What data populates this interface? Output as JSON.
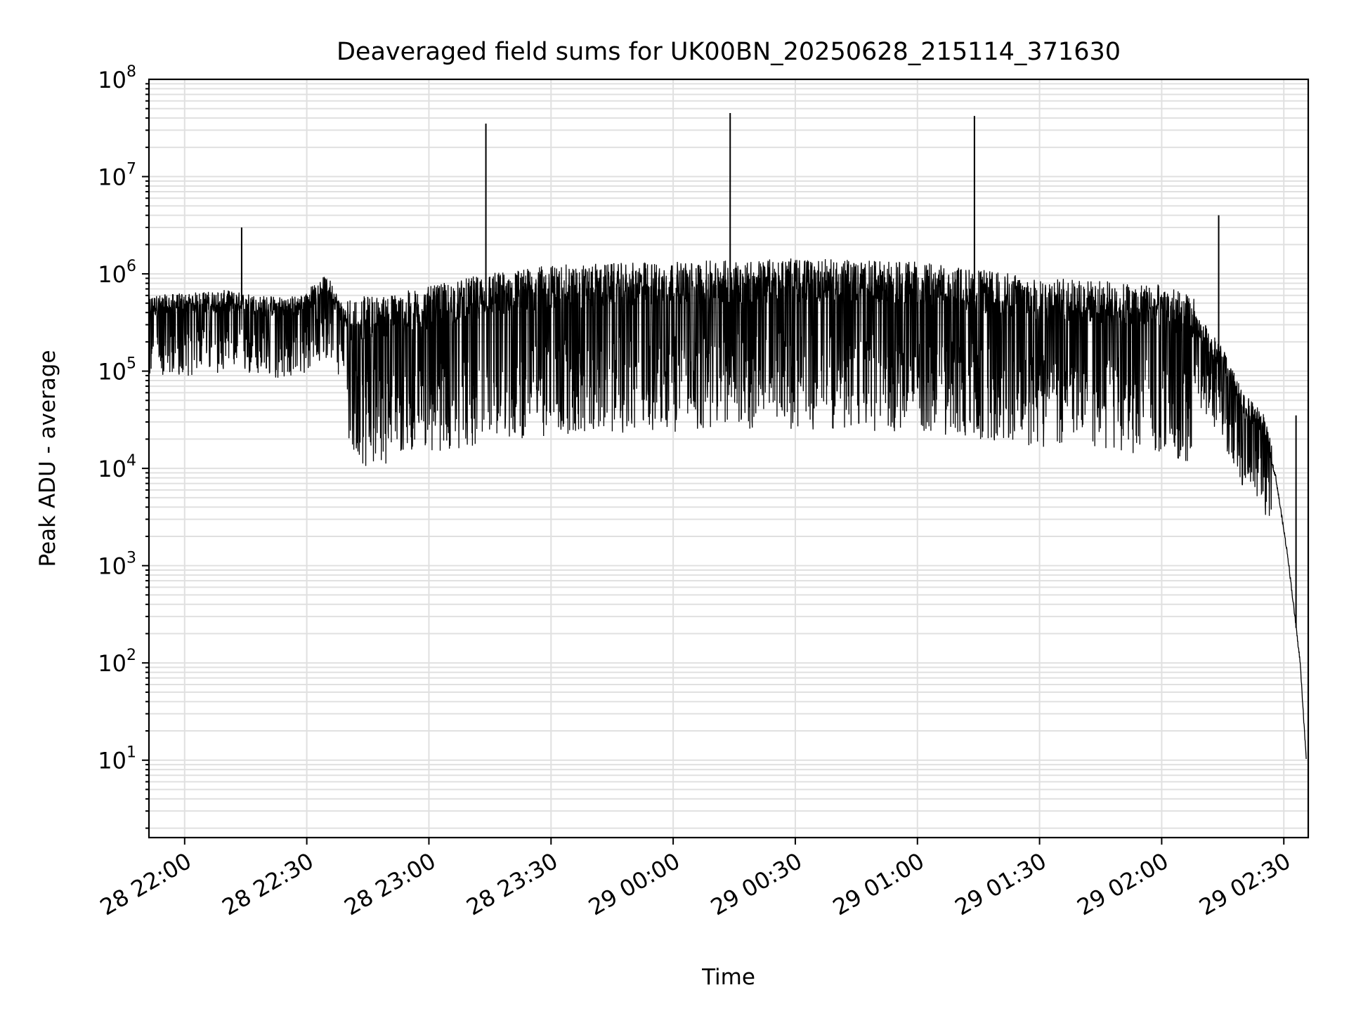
{
  "chart_data": {
    "type": "line",
    "title": "Deaveraged field sums for UK00BN_20250628_215114_371630",
    "xlabel": "Time",
    "ylabel": "Peak ADU - average",
    "yscale": "log",
    "ylim": [
      1.6,
      100000000
    ],
    "xlim": [
      "2025-06-28 21:51:14",
      "2025-06-29 02:36:00"
    ],
    "grid": true,
    "x_ticks": [
      {
        "t": "2025-06-28 22:00",
        "label": "28 22:00"
      },
      {
        "t": "2025-06-28 22:30",
        "label": "28 22:30"
      },
      {
        "t": "2025-06-28 23:00",
        "label": "28 23:00"
      },
      {
        "t": "2025-06-28 23:30",
        "label": "28 23:30"
      },
      {
        "t": "2025-06-29 00:00",
        "label": "29 00:00"
      },
      {
        "t": "2025-06-29 00:30",
        "label": "29 00:30"
      },
      {
        "t": "2025-06-29 01:00",
        "label": "29 01:00"
      },
      {
        "t": "2025-06-29 01:30",
        "label": "29 01:30"
      },
      {
        "t": "2025-06-29 02:00",
        "label": "29 02:00"
      },
      {
        "t": "2025-06-29 02:30",
        "label": "29 02:30"
      }
    ],
    "y_ticks": [
      {
        "value": 10,
        "base": "10",
        "exp": "1"
      },
      {
        "value": 100,
        "base": "10",
        "exp": "2"
      },
      {
        "value": 1000,
        "base": "10",
        "exp": "3"
      },
      {
        "value": 10000,
        "base": "10",
        "exp": "4"
      },
      {
        "value": 100000,
        "base": "10",
        "exp": "5"
      },
      {
        "value": 1000000,
        "base": "10",
        "exp": "6"
      },
      {
        "value": 10000000,
        "base": "10",
        "exp": "7"
      },
      {
        "value": 100000000,
        "base": "10",
        "exp": "8"
      }
    ],
    "series": [
      {
        "color": "#000000",
        "trend": [
          [
            "2025-06-28 21:51:14",
            420000
          ],
          [
            "2025-06-28 22:10",
            480000
          ],
          [
            "2025-06-28 22:20",
            420000
          ],
          [
            "2025-06-28 22:28",
            420000
          ],
          [
            "2025-06-28 22:35",
            700000
          ],
          [
            "2025-06-28 22:40",
            280000
          ],
          [
            "2025-06-28 22:50",
            300000
          ],
          [
            "2025-06-28 23:00",
            360000
          ],
          [
            "2025-06-28 23:15",
            500000
          ],
          [
            "2025-06-28 23:30",
            600000
          ],
          [
            "2025-06-29 00:00",
            650000
          ],
          [
            "2025-06-29 00:30",
            700000
          ],
          [
            "2025-06-29 01:00",
            650000
          ],
          [
            "2025-06-29 01:30",
            450000
          ],
          [
            "2025-06-29 02:00",
            380000
          ],
          [
            "2025-06-29 02:08",
            280000
          ],
          [
            "2025-06-29 02:15",
            120000
          ],
          [
            "2025-06-29 02:20",
            40000
          ],
          [
            "2025-06-29 02:25",
            25000
          ],
          [
            "2025-06-29 02:28",
            8000
          ],
          [
            "2025-06-29 02:31",
            1200
          ],
          [
            "2025-06-29 02:34",
            100
          ],
          [
            "2025-06-29 02:35:30",
            10
          ]
        ],
        "spikes": [
          [
            "2025-06-28 22:14",
            3000000
          ],
          [
            "2025-06-28 23:14",
            35000000
          ],
          [
            "2025-06-29 00:14",
            45000000
          ],
          [
            "2025-06-29 01:14",
            42000000
          ],
          [
            "2025-06-29 02:14",
            4000000
          ],
          [
            "2025-06-29 02:33",
            35000
          ]
        ],
        "dips": [
          [
            "2025-06-28 22:03",
            150000
          ],
          [
            "2025-06-28 22:58",
            70000
          ],
          [
            "2025-06-28 23:17",
            50000
          ],
          [
            "2025-06-28 23:48",
            50000
          ],
          [
            "2025-06-28 23:57",
            40000
          ],
          [
            "2025-06-29 00:19",
            60000
          ],
          [
            "2025-06-29 00:43",
            55000
          ],
          [
            "2025-06-29 01:04",
            50000
          ],
          [
            "2025-06-29 01:36",
            70000
          ]
        ]
      }
    ]
  }
}
